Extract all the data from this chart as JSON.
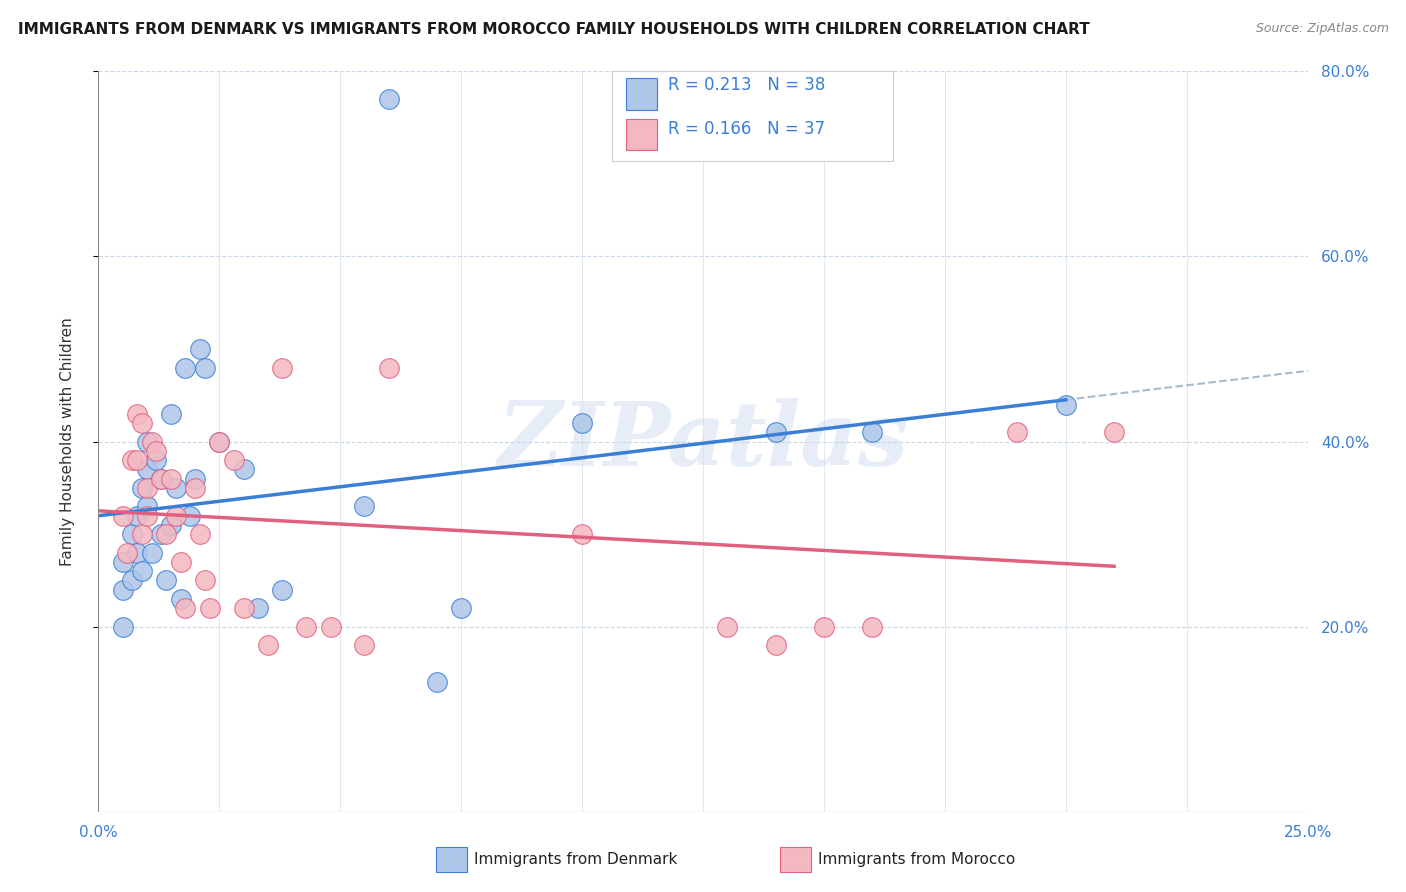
{
  "title": "IMMIGRANTS FROM DENMARK VS IMMIGRANTS FROM MOROCCO FAMILY HOUSEHOLDS WITH CHILDREN CORRELATION CHART",
  "source": "Source: ZipAtlas.com",
  "ylabel": "Family Households with Children",
  "xlim": [
    0.0,
    0.25
  ],
  "ylim": [
    0.0,
    0.8
  ],
  "denmark_R": 0.213,
  "denmark_N": 38,
  "morocco_R": 0.166,
  "morocco_N": 37,
  "denmark_color": "#aec6e8",
  "morocco_color": "#f4b8c1",
  "denmark_line_color": "#3a7fd5",
  "morocco_line_color": "#e06080",
  "background_color": "#ffffff",
  "grid_color": "#c8d8e8",
  "watermark": "ZIPatlas",
  "denmark_x": [
    0.005,
    0.005,
    0.005,
    0.007,
    0.007,
    0.008,
    0.008,
    0.009,
    0.009,
    0.01,
    0.01,
    0.01,
    0.011,
    0.012,
    0.013,
    0.013,
    0.014,
    0.015,
    0.015,
    0.016,
    0.017,
    0.018,
    0.019,
    0.02,
    0.021,
    0.022,
    0.025,
    0.03,
    0.033,
    0.038,
    0.055,
    0.06,
    0.07,
    0.075,
    0.1,
    0.14,
    0.16,
    0.2
  ],
  "denmark_y": [
    0.27,
    0.24,
    0.2,
    0.3,
    0.25,
    0.32,
    0.28,
    0.35,
    0.26,
    0.4,
    0.37,
    0.33,
    0.28,
    0.38,
    0.36,
    0.3,
    0.25,
    0.43,
    0.31,
    0.35,
    0.23,
    0.48,
    0.32,
    0.36,
    0.5,
    0.48,
    0.4,
    0.37,
    0.22,
    0.24,
    0.33,
    0.77,
    0.14,
    0.22,
    0.42,
    0.41,
    0.41,
    0.44
  ],
  "morocco_x": [
    0.005,
    0.006,
    0.007,
    0.008,
    0.008,
    0.009,
    0.009,
    0.01,
    0.01,
    0.011,
    0.012,
    0.013,
    0.014,
    0.015,
    0.016,
    0.017,
    0.018,
    0.02,
    0.021,
    0.022,
    0.023,
    0.025,
    0.028,
    0.03,
    0.035,
    0.038,
    0.043,
    0.048,
    0.055,
    0.06,
    0.1,
    0.13,
    0.14,
    0.15,
    0.16,
    0.19,
    0.21
  ],
  "morocco_y": [
    0.32,
    0.28,
    0.38,
    0.43,
    0.38,
    0.3,
    0.42,
    0.35,
    0.32,
    0.4,
    0.39,
    0.36,
    0.3,
    0.36,
    0.32,
    0.27,
    0.22,
    0.35,
    0.3,
    0.25,
    0.22,
    0.4,
    0.38,
    0.22,
    0.18,
    0.48,
    0.2,
    0.2,
    0.18,
    0.48,
    0.3,
    0.2,
    0.18,
    0.2,
    0.2,
    0.41,
    0.41
  ]
}
